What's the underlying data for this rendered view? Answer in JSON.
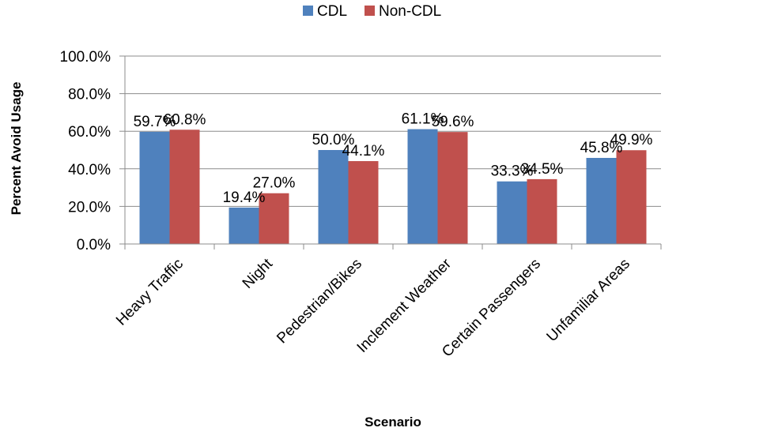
{
  "chart_data": {
    "type": "bar",
    "title": "",
    "xlabel": "Scenario",
    "ylabel": "Percent Avoid Usage",
    "ylim": [
      0,
      100
    ],
    "yticks": [
      "0.0%",
      "20.0%",
      "40.0%",
      "60.0%",
      "80.0%",
      "100.0%"
    ],
    "grid": true,
    "legend_position": "top",
    "categories": [
      "Heavy Traffic",
      "Night",
      "Pedestrian/Bikes",
      "Inclement Weather",
      "Certain Passengers",
      "Unfamiliar Areas"
    ],
    "series": [
      {
        "name": "CDL",
        "color": "#4F81BD",
        "values": [
          59.7,
          19.4,
          50.0,
          61.1,
          33.3,
          45.8
        ],
        "labels": [
          "59.7%",
          "19.4%",
          "50.0%",
          "61.1%",
          "33.3%",
          "45.8%"
        ]
      },
      {
        "name": "Non-CDL",
        "color": "#C0504D",
        "values": [
          60.8,
          27.0,
          44.1,
          59.6,
          34.5,
          49.9
        ],
        "labels": [
          "60.8%",
          "27.0%",
          "44.1%",
          "59.6%",
          "34.5%",
          "49.9%"
        ]
      }
    ]
  }
}
